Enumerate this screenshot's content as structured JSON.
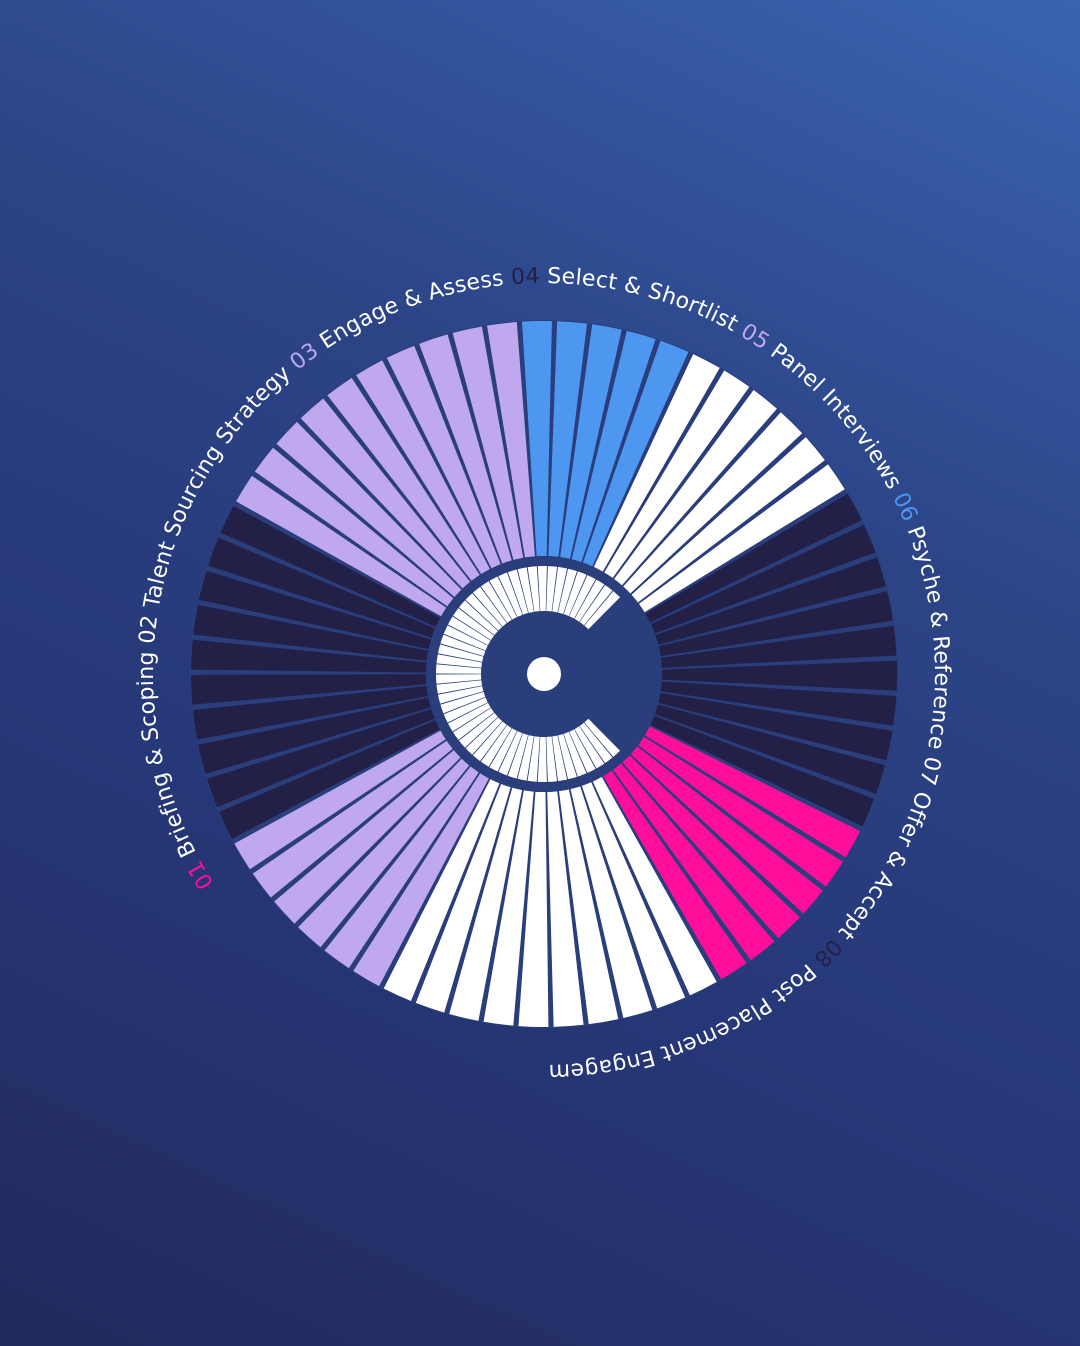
{
  "colors": {
    "ring_bg": "#2b3e7c",
    "stage_01": "#ff0e9b",
    "stage_02": "#ffffff",
    "stage_03": "#bfa8ee",
    "stage_04": "#222047",
    "stage_05": "#bfa8ee",
    "stage_06": "#4d97f0",
    "stage_07": "#ffffff",
    "stage_08": "#222047",
    "label_text": "#ffffff",
    "center_logo": "#ffffff"
  },
  "logo": {
    "name": "c-logo-icon",
    "letter": "C"
  },
  "stages": [
    {
      "number": "01",
      "label": "Briefing & Scoping",
      "color": "#ff0e9b",
      "number_color": "#ff0e9b",
      "segments": 6
    },
    {
      "number": "02",
      "label": "Talent Sourcing Strategy",
      "color": "#ffffff",
      "number_color": "#ffffff",
      "segments": 10
    },
    {
      "number": "03",
      "label": "Engage & Assess",
      "color": "#bfa8ee",
      "number_color": "#bfa8ee",
      "segments": 6
    },
    {
      "number": "04",
      "label": "Select & Shortlist",
      "color": "#222047",
      "number_color": "#222047",
      "segments": 10
    },
    {
      "number": "05",
      "label": "Panel Interviews",
      "color": "#bfa8ee",
      "number_color": "#bfa8ee",
      "segments": 10
    },
    {
      "number": "06",
      "label": "Psyche & Reference",
      "color": "#4d97f0",
      "number_color": "#4d97f0",
      "segments": 5
    },
    {
      "number": "07",
      "label": "Offer & Accept",
      "color": "#ffffff",
      "number_color": "#ffffff",
      "segments": 6
    },
    {
      "number": "08",
      "label": "Post Placement Engagement",
      "color": "#222047",
      "number_color": "#222047",
      "segments": 10
    }
  ]
}
